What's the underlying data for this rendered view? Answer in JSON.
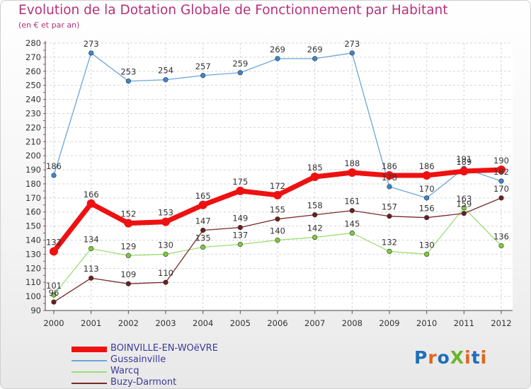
{
  "header": {
    "title": "Evolution de la Dotation Globale de Fonctionnement par Habitant",
    "subtitle": "(en € et par an)"
  },
  "logo": {
    "text": "ProXiti",
    "colors": [
      "#1e6fb8",
      "#e3641d",
      "#1e6fb8",
      "#6bb52b",
      "#e3641d",
      "#1e6fb8",
      "#e3641d"
    ]
  },
  "chart_data": {
    "type": "line",
    "x": [
      "2000",
      "2001",
      "2002",
      "2003",
      "2004",
      "2005",
      "2006",
      "2007",
      "2008",
      "2009",
      "2010",
      "2011",
      "2012"
    ],
    "ylim": [
      90,
      280
    ],
    "yticks": [
      90,
      100,
      110,
      120,
      130,
      140,
      150,
      160,
      170,
      180,
      190,
      200,
      210,
      220,
      230,
      240,
      250,
      260,
      270,
      280
    ],
    "grid": true,
    "legend_position": "bottom-left",
    "series": [
      {
        "name": "BOINVILLE-EN-WOëVRE",
        "color": "#ee1111",
        "marker": "#ee1111",
        "emphasis": true,
        "values": [
          132,
          166,
          152,
          153,
          165,
          175,
          172,
          185,
          188,
          186,
          186,
          189,
          190
        ]
      },
      {
        "name": "Gussainville",
        "color": "#6aa6dc",
        "marker": "#3b86cc",
        "values": [
          186,
          273,
          253,
          254,
          257,
          259,
          269,
          269,
          273,
          178,
          170,
          191,
          182
        ]
      },
      {
        "name": "Warcq",
        "color": "#9dde73",
        "marker": "#7ccc3c",
        "values": [
          101,
          134,
          129,
          130,
          135,
          137,
          140,
          142,
          145,
          132,
          130,
          163,
          136
        ]
      },
      {
        "name": "Buzy-Darmont",
        "color": "#7a2a2a",
        "marker": "#6b1e1e",
        "values": [
          96,
          113,
          109,
          110,
          147,
          149,
          155,
          158,
          161,
          157,
          156,
          159,
          170
        ]
      }
    ]
  }
}
